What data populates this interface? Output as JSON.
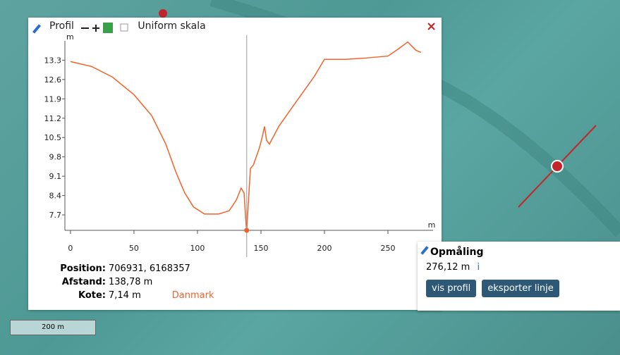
{
  "panel": {
    "title": "Profil",
    "uniform": "Uniform skala",
    "info": [
      {
        "label": "Position:",
        "value": "706931, 6168357"
      },
      {
        "label": "Afstand:",
        "value": "138,78 m"
      },
      {
        "label": "Kote:",
        "value": "7,14 m"
      }
    ],
    "region": "Danmark"
  },
  "profile": {
    "type": "line",
    "color": "#f4622a",
    "y_unit": "m",
    "x_unit": "m",
    "x": [
      0,
      16.7,
      33,
      50,
      64,
      75,
      83,
      90,
      97,
      105.6,
      116.7,
      125,
      130.6,
      134.4,
      136.7,
      138.3,
      138.78,
      141.7,
      144,
      148.9,
      151,
      152.8,
      154.4,
      156.7,
      164,
      177.8,
      191.7,
      200,
      216.7,
      233,
      250,
      258,
      265.6,
      272,
      276
    ],
    "values": [
      13.25,
      13.07,
      12.69,
      12.05,
      11.29,
      10.27,
      9.25,
      8.49,
      7.98,
      7.73,
      7.73,
      7.85,
      8.24,
      8.67,
      8.49,
      7.34,
      7.14,
      9.38,
      9.5,
      10.14,
      10.52,
      10.9,
      10.4,
      10.26,
      10.9,
      11.8,
      12.69,
      13.33,
      13.33,
      13.38,
      13.45,
      13.7,
      13.96,
      13.66,
      13.58
    ],
    "marker": {
      "x": 138.78,
      "y": 7.14
    },
    "xlim": [
      -4.4,
      280
    ],
    "ylim": [
      7.14,
      14.0
    ],
    "xticks": [
      0,
      50,
      100,
      150,
      200,
      250
    ],
    "yticks": [
      7.7,
      8.4,
      9.1,
      9.8,
      10.5,
      11.2,
      11.9,
      12.6,
      13.3
    ]
  },
  "measure": {
    "title": "Opmåling",
    "length": "276,12 m",
    "info": "i",
    "buttons": [
      "vis profil",
      "eksporter linje"
    ]
  },
  "scale": "200 m"
}
